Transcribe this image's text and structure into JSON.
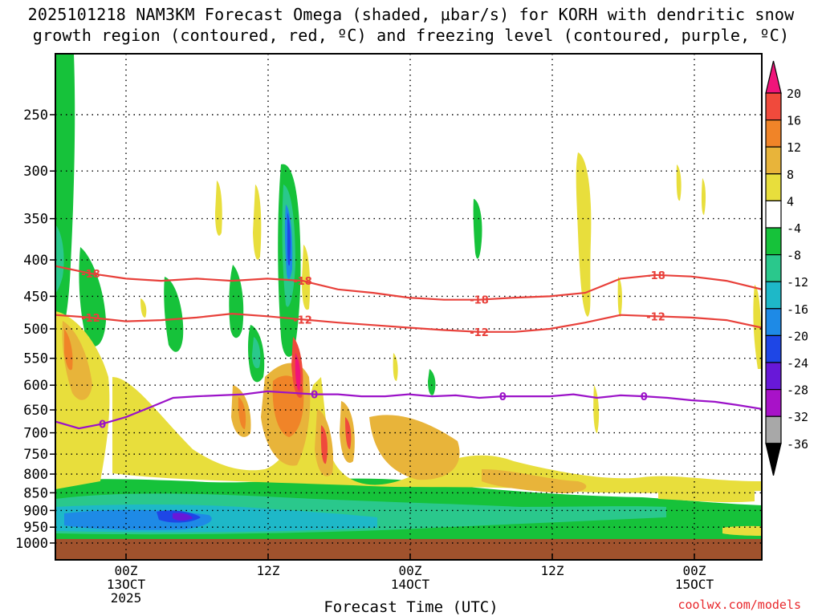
{
  "title_line1": "2025101218 NAM3KM Forecast Omega (shaded, μbar/s) for KORH with dendritic snow",
  "title_line2": "growth region (contoured, red, ºC) and freezing level (contoured, purple, ºC)",
  "credit": "coolwx.com/models",
  "colors": {
    "isotherm": "#e8403a",
    "freezing_level": "#9b12c8",
    "ground": "#a0522d"
  },
  "chart_data": {
    "type": "heatmap",
    "title": "2025101218 NAM3KM Forecast Omega (shaded, μbar/s) for KORH",
    "xlabel": "Forecast Time (UTC)",
    "ylabel": "",
    "y_scale": "log-pressure (inverted)",
    "y_ticks": [
      250,
      300,
      350,
      400,
      450,
      500,
      550,
      600,
      650,
      700,
      750,
      800,
      850,
      900,
      950,
      1000
    ],
    "x_ticks": [
      {
        "hour": 6,
        "label": "00Z",
        "sub1": "13OCT",
        "sub2": "2025"
      },
      {
        "hour": 18,
        "label": "12Z",
        "sub1": "",
        "sub2": ""
      },
      {
        "hour": 30,
        "label": "00Z",
        "sub1": "14OCT",
        "sub2": ""
      },
      {
        "hour": 42,
        "label": "12Z",
        "sub1": "",
        "sub2": ""
      },
      {
        "hour": 54,
        "label": "00Z",
        "sub1": "15OCT",
        "sub2": ""
      }
    ],
    "x_range_hours": [
      0,
      60
    ],
    "grid": true,
    "colorbar": {
      "labels": [
        20,
        16,
        12,
        8,
        4,
        -4,
        -8,
        -12,
        -16,
        -20,
        -24,
        -28,
        -32,
        -36
      ],
      "colors": [
        "#f0147a",
        "#f04a3c",
        "#f08428",
        "#e8b43a",
        "#e8de3c",
        "#ffffff",
        "#16c23a",
        "#2ac88c",
        "#1eb8c8",
        "#1e8ae6",
        "#1e46e6",
        "#6818d8",
        "#a812c8",
        "#a8a8a8",
        "#000000"
      ]
    },
    "contours": [
      {
        "level": "-18",
        "kind": "isotherm",
        "points": [
          [
            0,
            408
          ],
          [
            3,
            418
          ],
          [
            6,
            425
          ],
          [
            9,
            428
          ],
          [
            12,
            425
          ],
          [
            15,
            428
          ],
          [
            18,
            425
          ],
          [
            21,
            428
          ],
          [
            24,
            440
          ],
          [
            27,
            445
          ],
          [
            30,
            452
          ],
          [
            33,
            455
          ],
          [
            36,
            455
          ],
          [
            39,
            452
          ],
          [
            42,
            450
          ],
          [
            45,
            445
          ],
          [
            48,
            425
          ],
          [
            51,
            420
          ],
          [
            54,
            422
          ],
          [
            57,
            428
          ],
          [
            60,
            440
          ]
        ]
      },
      {
        "level": "-12",
        "kind": "isotherm",
        "points": [
          [
            0,
            478
          ],
          [
            3,
            482
          ],
          [
            6,
            488
          ],
          [
            9,
            486
          ],
          [
            12,
            482
          ],
          [
            15,
            476
          ],
          [
            18,
            480
          ],
          [
            21,
            485
          ],
          [
            24,
            490
          ],
          [
            27,
            494
          ],
          [
            30,
            498
          ],
          [
            33,
            502
          ],
          [
            36,
            505
          ],
          [
            39,
            505
          ],
          [
            42,
            500
          ],
          [
            45,
            490
          ],
          [
            48,
            478
          ],
          [
            51,
            480
          ],
          [
            54,
            482
          ],
          [
            57,
            486
          ],
          [
            60,
            498
          ]
        ]
      },
      {
        "level": "0",
        "kind": "freezing",
        "points": [
          [
            0,
            675
          ],
          [
            2,
            690
          ],
          [
            4,
            680
          ],
          [
            6,
            665
          ],
          [
            8,
            645
          ],
          [
            10,
            625
          ],
          [
            12,
            622
          ],
          [
            14,
            620
          ],
          [
            16,
            618
          ],
          [
            18,
            612
          ],
          [
            20,
            615
          ],
          [
            22,
            618
          ],
          [
            24,
            618
          ],
          [
            26,
            622
          ],
          [
            28,
            622
          ],
          [
            30,
            618
          ],
          [
            32,
            622
          ],
          [
            34,
            620
          ],
          [
            36,
            625
          ],
          [
            38,
            622
          ],
          [
            40,
            622
          ],
          [
            42,
            622
          ],
          [
            44,
            618
          ],
          [
            46,
            625
          ],
          [
            48,
            620
          ],
          [
            50,
            622
          ],
          [
            52,
            625
          ],
          [
            54,
            630
          ],
          [
            56,
            633
          ],
          [
            58,
            640
          ],
          [
            60,
            648
          ]
        ]
      }
    ]
  }
}
